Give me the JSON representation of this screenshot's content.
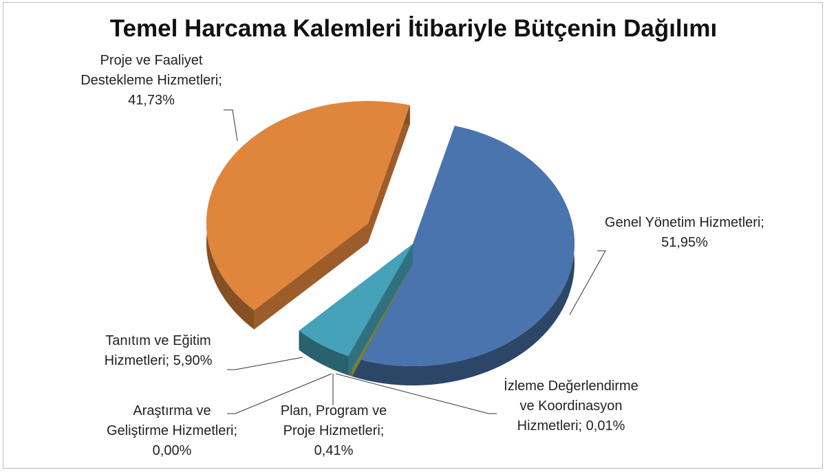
{
  "chart_data": {
    "type": "pie",
    "title": "Temel Harcama Kalemleri İtibariyle Bütçenin Dağılımı",
    "categories": [
      "Genel Yönetim Hizmetleri",
      "İzleme Değerlendirme ve Koordinasyon Hizmetleri",
      "Plan, Program ve Proje Hizmetleri",
      "Araştırma ve Geliştirme Hizmetleri",
      "Tanıtım ve Eğitim Hizmetleri",
      "Proje ve Faaliyet Destekleme Hizmetleri"
    ],
    "values": [
      51.95,
      0.01,
      0.41,
      0.0,
      5.9,
      41.73
    ],
    "value_labels": [
      "51,95%",
      "0,01%",
      "0,41%",
      "0,00%",
      "5,90%",
      "41,73%"
    ],
    "colors": [
      "#4a74ae",
      "#c0504d",
      "#9bbb59",
      "#8064a2",
      "#45a2b8",
      "#e0853c"
    ]
  }
}
